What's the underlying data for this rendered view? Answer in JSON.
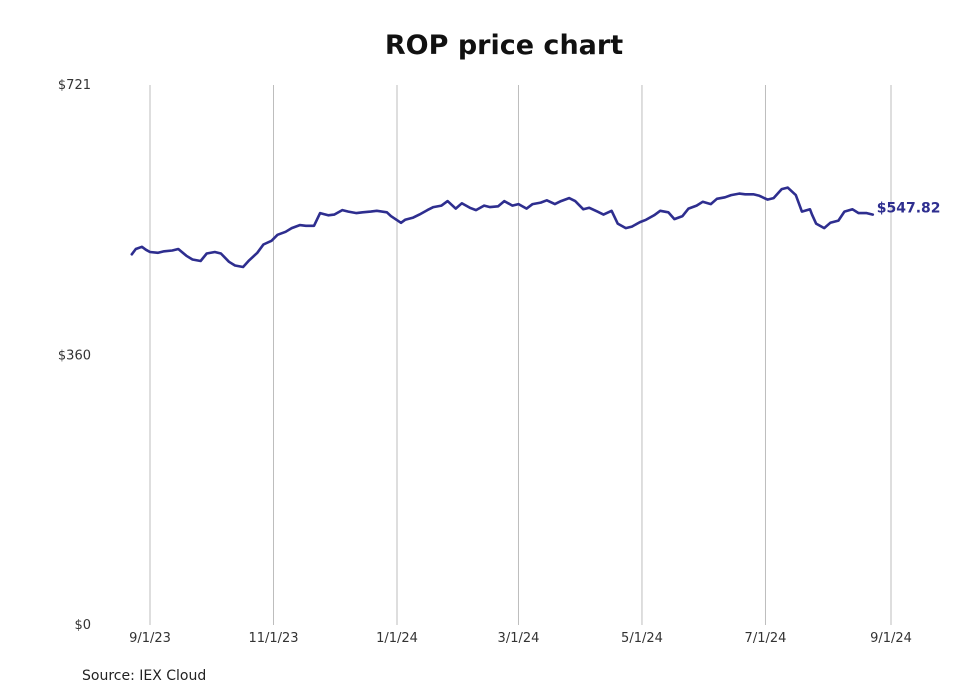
{
  "chart_data": {
    "type": "line",
    "title": "ROP price chart",
    "source": "Source: IEX Cloud",
    "xlabel": "",
    "ylabel": "",
    "ylim": [
      0,
      721
    ],
    "y_ticks": [
      {
        "value": 0,
        "label": "$0"
      },
      {
        "value": 360,
        "label": "$360"
      },
      {
        "value": 721,
        "label": "$721"
      }
    ],
    "x_ticks": [
      "9/1/23",
      "11/1/23",
      "1/1/24",
      "3/1/24",
      "5/1/24",
      "7/1/24",
      "9/1/24"
    ],
    "xlim": [
      "2023-08-22",
      "2024-09-05"
    ],
    "grid": {
      "vertical": true,
      "horizontal": false
    },
    "last_value_label": "$547.82",
    "line_color": "#2e2e8f",
    "series": [
      {
        "x": [
          "2023-08-23",
          "2023-08-25",
          "2023-08-28",
          "2023-08-30",
          "2023-09-01",
          "2023-09-05",
          "2023-09-08",
          "2023-09-12",
          "2023-09-15",
          "2023-09-19",
          "2023-09-22",
          "2023-09-26",
          "2023-09-29",
          "2023-10-03",
          "2023-10-06",
          "2023-10-10",
          "2023-10-13",
          "2023-10-17",
          "2023-10-20",
          "2023-10-24",
          "2023-10-27",
          "2023-10-31",
          "2023-11-03",
          "2023-11-07",
          "2023-11-10",
          "2023-11-14",
          "2023-11-17",
          "2023-11-21",
          "2023-11-24",
          "2023-11-28",
          "2023-12-01",
          "2023-12-05",
          "2023-12-08",
          "2023-12-12",
          "2023-12-15",
          "2023-12-19",
          "2023-12-22",
          "2023-12-27",
          "2023-12-29",
          "2024-01-03",
          "2024-01-05",
          "2024-01-09",
          "2024-01-12",
          "2024-01-16",
          "2024-01-19",
          "2024-01-23",
          "2024-01-26",
          "2024-01-30",
          "2024-02-02",
          "2024-02-06",
          "2024-02-09",
          "2024-02-13",
          "2024-02-16",
          "2024-02-20",
          "2024-02-23",
          "2024-02-27",
          "2024-03-01",
          "2024-03-05",
          "2024-03-08",
          "2024-03-12",
          "2024-03-15",
          "2024-03-19",
          "2024-03-22",
          "2024-03-26",
          "2024-03-29",
          "2024-04-02",
          "2024-04-05",
          "2024-04-09",
          "2024-04-12",
          "2024-04-16",
          "2024-04-19",
          "2024-04-23",
          "2024-04-26",
          "2024-04-30",
          "2024-05-03",
          "2024-05-07",
          "2024-05-10",
          "2024-05-14",
          "2024-05-17",
          "2024-05-21",
          "2024-05-24",
          "2024-05-28",
          "2024-05-31",
          "2024-06-04",
          "2024-06-07",
          "2024-06-11",
          "2024-06-14",
          "2024-06-18",
          "2024-06-21",
          "2024-06-25",
          "2024-06-28",
          "2024-07-02",
          "2024-07-05",
          "2024-07-09",
          "2024-07-12",
          "2024-07-16",
          "2024-07-19",
          "2024-07-23",
          "2024-07-24",
          "2024-07-26",
          "2024-07-30",
          "2024-08-02",
          "2024-08-06",
          "2024-08-09",
          "2024-08-13",
          "2024-08-16",
          "2024-08-20",
          "2024-08-23"
        ],
        "values": [
          495,
          502,
          505,
          501,
          498,
          497,
          499,
          500,
          502,
          493,
          488,
          486,
          496,
          498,
          496,
          485,
          480,
          478,
          487,
          497,
          508,
          513,
          521,
          525,
          530,
          534,
          533,
          533,
          550,
          547,
          548,
          554,
          552,
          550,
          551,
          552,
          553,
          551,
          546,
          537,
          541,
          544,
          548,
          554,
          558,
          560,
          566,
          556,
          563,
          557,
          554,
          560,
          558,
          559,
          566,
          560,
          562,
          556,
          562,
          564,
          567,
          562,
          566,
          570,
          566,
          555,
          557,
          552,
          548,
          553,
          536,
          530,
          532,
          538,
          541,
          547,
          553,
          551,
          542,
          546,
          556,
          560,
          565,
          562,
          569,
          571,
          574,
          576,
          575,
          575,
          573,
          568,
          570,
          582,
          584,
          574,
          552,
          555,
          548,
          536,
          530,
          537,
          540,
          552,
          555,
          550,
          550,
          548
        ]
      }
    ]
  }
}
